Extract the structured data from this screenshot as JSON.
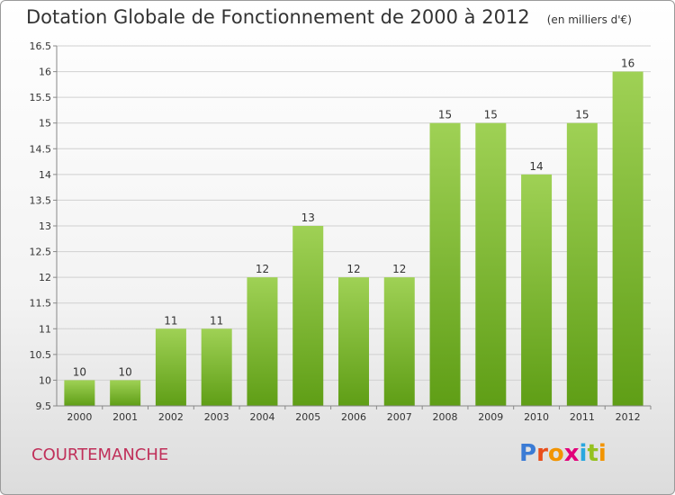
{
  "title": "Dotation Globale de Fonctionnement de 2000 à 2012",
  "title_unit": "(en milliers d'€)",
  "commune": "COURTEMANCHE",
  "logo": {
    "text": "Proxiti",
    "colors": [
      "#3a7bd5",
      "#e94e1b",
      "#f29400",
      "#e2007a",
      "#2aa7df",
      "#95c11f",
      "#f29400"
    ]
  },
  "colors": {
    "bar_top": "#9fd155",
    "bar_bottom": "#5f9e16",
    "grid": "#d0d0d0",
    "axis": "#888888"
  },
  "chart_data": {
    "type": "bar",
    "title": "Dotation Globale de Fonctionnement de 2000 à 2012",
    "ylabel": "",
    "xlabel": "",
    "ylim": [
      9.5,
      16.5
    ],
    "yticks": [
      9.5,
      10,
      10.5,
      11,
      11.5,
      12,
      12.5,
      13,
      13.5,
      14,
      14.5,
      15,
      15.5,
      16,
      16.5
    ],
    "grid": true,
    "categories": [
      "2000",
      "2001",
      "2002",
      "2003",
      "2004",
      "2005",
      "2006",
      "2007",
      "2008",
      "2009",
      "2010",
      "2011",
      "2012"
    ],
    "values": [
      10,
      10,
      11,
      11,
      12,
      13,
      12,
      12,
      15,
      15,
      14,
      15,
      16
    ],
    "value_labels": [
      "10",
      "10",
      "11",
      "11",
      "12",
      "13",
      "12",
      "12",
      "15",
      "15",
      "14",
      "15",
      "16"
    ]
  }
}
